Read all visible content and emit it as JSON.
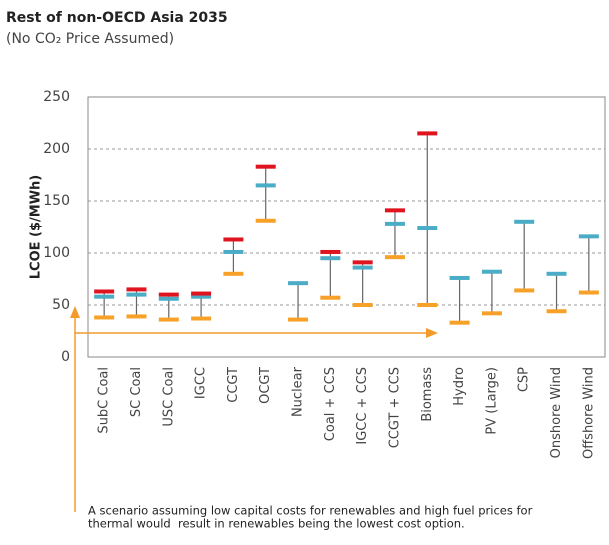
{
  "chart_data": {
    "type": "range",
    "title": "Rest of non-OECD Asia 2035",
    "subtitle": "(No CO₂ Price Assumed)",
    "y_label": "LCOE ($/MWh)",
    "categories": [
      "SubC Coal",
      "SC Coal",
      "USC Coal",
      "IGCC",
      "CCGT",
      "OCGT",
      "Nuclear",
      "Coal + CCS",
      "IGCC + CCS",
      "CCGT + CCS",
      "Biomass",
      "Hydro",
      "PV (Large)",
      "CSP",
      "Onshore Wind",
      "Offshore Wind"
    ],
    "series": [
      {
        "color": "#f7a128",
        "values": [
          38,
          39,
          36,
          37,
          80,
          131,
          36,
          57,
          50,
          96,
          50,
          33,
          42,
          64,
          44,
          62
        ]
      },
      {
        "color": "#4bacc6",
        "values": [
          58,
          60,
          56,
          58,
          101,
          165,
          71,
          95,
          86,
          128,
          124,
          76,
          82,
          130,
          80,
          116
        ]
      },
      {
        "color": "#e0141e",
        "values": [
          63,
          65,
          60,
          61,
          113,
          183,
          null,
          101,
          91,
          141,
          215,
          null,
          null,
          null,
          null,
          null
        ]
      }
    ],
    "ylim": [
      0,
      250
    ],
    "yticks": [
      0,
      50,
      100,
      150,
      200,
      250
    ],
    "grid": true,
    "annotation": [
      "A scenario assuming low capital costs for renewables and high fuel prices for",
      "thermal would  result in renewables being the lowest cost option."
    ]
  }
}
